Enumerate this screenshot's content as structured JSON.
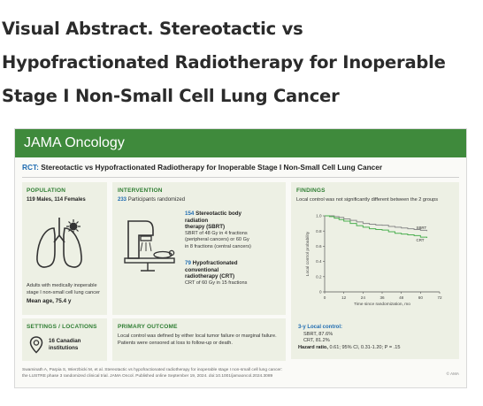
{
  "page": {
    "title_lines": [
      "Visual Abstract. Stereotactic vs",
      "Hypofractionated Radiotherapy for Inoperable",
      "Stage I Non-Small Cell Lung Cancer"
    ]
  },
  "abstract": {
    "journal": "JAMA Oncology",
    "rct_label": "RCT:",
    "rct_title": "Stereotactic vs Hypofractionated Radiotherapy for Inoperable Stage I Non-Small Cell Lung Cancer",
    "population": {
      "heading": "POPULATION",
      "counts": "119 Males, 114 Females",
      "description_lines": [
        "Adults with medically inoperable",
        "stage I non-small cell lung cancer"
      ],
      "mean_age": "Mean age, 75.4 y"
    },
    "intervention": {
      "heading": "INTERVENTION",
      "randomized_n": "233",
      "randomized_text": "Participants randomized",
      "arm1": {
        "n": "154",
        "name_lines": [
          "Stereotactic body",
          "radiation",
          "therapy (SBRT)"
        ],
        "detail_lines": [
          "SBRT of 48 Gy in 4 fractions",
          "(peripheral cancers) or 60 Gy",
          "in 8 fractions (central cancers)"
        ]
      },
      "arm2": {
        "n": "79",
        "name_lines": [
          "Hypofractionated",
          "conventional",
          "radiotherapy (CRT)"
        ],
        "detail_lines": [
          "CRT of 60 Gy in 15 fractions"
        ]
      }
    },
    "findings": {
      "heading": "FINDINGS",
      "summary": "Local control was not significantly different between the 2 groups",
      "local_control_heading": "3-y Local control:",
      "sbrt_result": "SBRT, 87.6%",
      "crt_result": "CRT, 81.2%",
      "hazard_label": "Hazard ratio,",
      "hazard_value": "0.61; 95% CI, 0.31-1.20; P = .15"
    },
    "settings": {
      "heading": "SETTINGS / LOCATIONS",
      "institutions_lines": [
        "16 Canadian",
        "institutions"
      ]
    },
    "outcome": {
      "heading": "PRIMARY OUTCOME",
      "text_lines": [
        "Local control was defined by either local tumor failure or marginal failure.",
        "Patients were censored at loss to follow-up or death."
      ]
    },
    "citation_lines": [
      "Swaminath A, Parpia S, Wierzbicki M, et al. Stereotactic vs hypofractionated radiotherapy for inoperable stage I non-small cell lung cancer:",
      "the LUSTRE phase 3 randomized clinical trial. JAMA Oncol. Published online September 19, 2024. doi:10.1001/jamaoncol.2024.3089"
    ],
    "image_code": "© AMA",
    "colors": {
      "banner_green": "#3f8a3c",
      "heading_green": "#2e7d32",
      "accent_blue": "#1f6cb1",
      "panel_bg": "#edf0e4",
      "sbrt_line": "#8a8a8a",
      "crt_line": "#4caf50"
    },
    "icons": [
      "lungs-icon",
      "radiotherapy-machine-icon",
      "location-pin-icon"
    ]
  },
  "chart_data": {
    "type": "line",
    "xlabel": "Time since randomization, mo",
    "ylabel": "Local control probability",
    "x_ticks": [
      0,
      12,
      24,
      36,
      48,
      60,
      72
    ],
    "y_ticks": [
      0,
      0.2,
      0.4,
      0.6,
      0.8,
      1.0
    ],
    "y_tick_labels": [
      "0",
      "0.2",
      "0.4",
      "0.6",
      "0.8",
      "1.0"
    ],
    "xlim": [
      0,
      72
    ],
    "ylim": [
      0,
      1.0
    ],
    "grid": false,
    "legend": "inline-right",
    "series": [
      {
        "name": "SBRT",
        "color": "#8a8a8a",
        "x": [
          0,
          3,
          6,
          9,
          12,
          16,
          20,
          24,
          28,
          32,
          36,
          40,
          44,
          48,
          52,
          56,
          60,
          64
        ],
        "y": [
          1.0,
          1.0,
          0.99,
          0.98,
          0.96,
          0.94,
          0.92,
          0.9,
          0.89,
          0.88,
          0.876,
          0.86,
          0.85,
          0.84,
          0.83,
          0.82,
          0.81,
          0.8
        ]
      },
      {
        "name": "CRT",
        "color": "#4caf50",
        "x": [
          0,
          3,
          6,
          9,
          12,
          16,
          20,
          24,
          28,
          32,
          36,
          40,
          44,
          48,
          52,
          56,
          60,
          64
        ],
        "y": [
          1.0,
          0.99,
          0.97,
          0.95,
          0.93,
          0.9,
          0.87,
          0.85,
          0.83,
          0.82,
          0.812,
          0.79,
          0.77,
          0.76,
          0.75,
          0.74,
          0.72,
          0.71
        ]
      }
    ]
  }
}
